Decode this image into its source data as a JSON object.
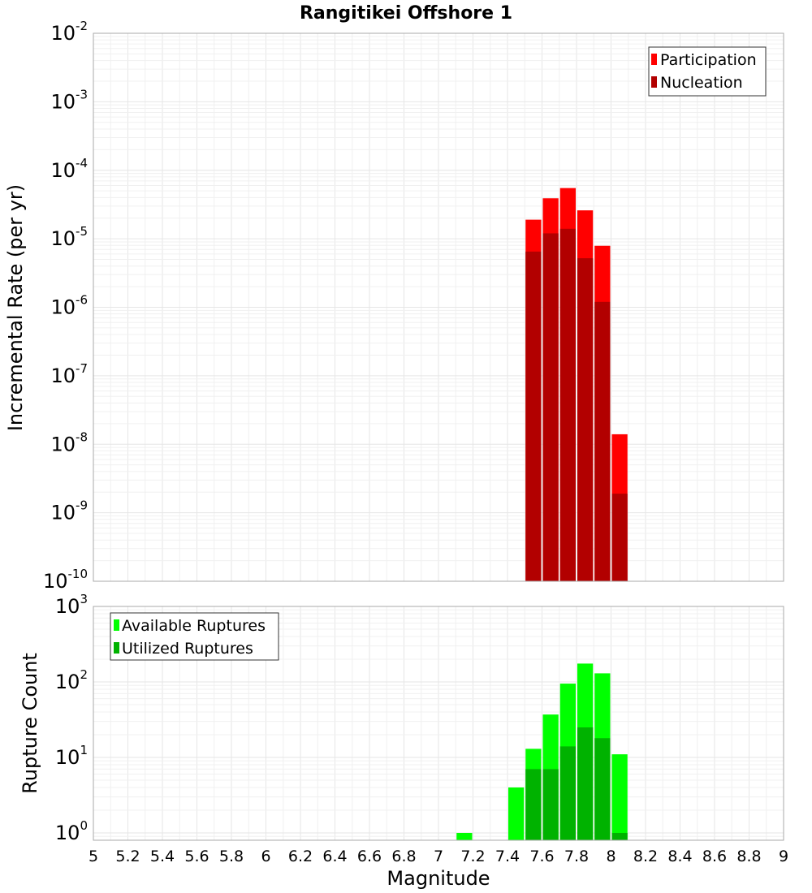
{
  "chart_data": [
    {
      "type": "bar",
      "title": "Rangitikei Offshore 1",
      "ylabel": "Incremental Rate (per yr)",
      "xlabel": "",
      "x_range": [
        5,
        9
      ],
      "y_scale": "log",
      "ylim": [
        1e-10,
        0.01
      ],
      "y_ticks": [
        "10^-10",
        "10^-9",
        "10^-8",
        "10^-7",
        "10^-6",
        "10^-5",
        "10^-4",
        "10^-3",
        "10^-2"
      ],
      "grid": true,
      "legend_position": "top-right",
      "bar_width": 0.1,
      "series": [
        {
          "name": "Participation",
          "color": "#ff0000",
          "x": [
            7.55,
            7.65,
            7.75,
            7.85,
            7.95,
            8.05
          ],
          "values": [
            1.9e-05,
            3.9e-05,
            5.5e-05,
            2.6e-05,
            7.9e-06,
            1.4e-08
          ]
        },
        {
          "name": "Nucleation",
          "color": "#b20000",
          "x": [
            7.55,
            7.65,
            7.75,
            7.85,
            7.95,
            8.05
          ],
          "values": [
            6.5e-06,
            1.2e-05,
            1.4e-05,
            5.2e-06,
            1.2e-06,
            1.9e-09
          ]
        }
      ]
    },
    {
      "type": "bar",
      "title": "",
      "ylabel": "Rupture Count",
      "xlabel": "Magnitude",
      "x_range": [
        5,
        9
      ],
      "x_ticks": [
        "5",
        "5.2",
        "5.4",
        "5.6",
        "5.8",
        "6",
        "6.2",
        "6.4",
        "6.6",
        "6.8",
        "7",
        "7.2",
        "7.4",
        "7.6",
        "7.8",
        "8",
        "8.2",
        "8.4",
        "8.6",
        "8.8",
        "9"
      ],
      "y_scale": "log",
      "ylim": [
        0.8,
        1000
      ],
      "y_ticks": [
        "10^0",
        "10^1",
        "10^2",
        "10^3"
      ],
      "grid": true,
      "legend_position": "top-left",
      "bar_width": 0.1,
      "series": [
        {
          "name": "Available Ruptures",
          "color": "#00ff00",
          "x": [
            7.15,
            7.45,
            7.55,
            7.65,
            7.75,
            7.85,
            7.95,
            8.05
          ],
          "values": [
            1,
            4,
            13,
            37,
            95,
            175,
            130,
            11
          ]
        },
        {
          "name": "Utilized Ruptures",
          "color": "#00b200",
          "x": [
            7.55,
            7.65,
            7.75,
            7.85,
            7.95,
            8.05
          ],
          "values": [
            7,
            7,
            14,
            25,
            18,
            1
          ]
        }
      ]
    }
  ]
}
